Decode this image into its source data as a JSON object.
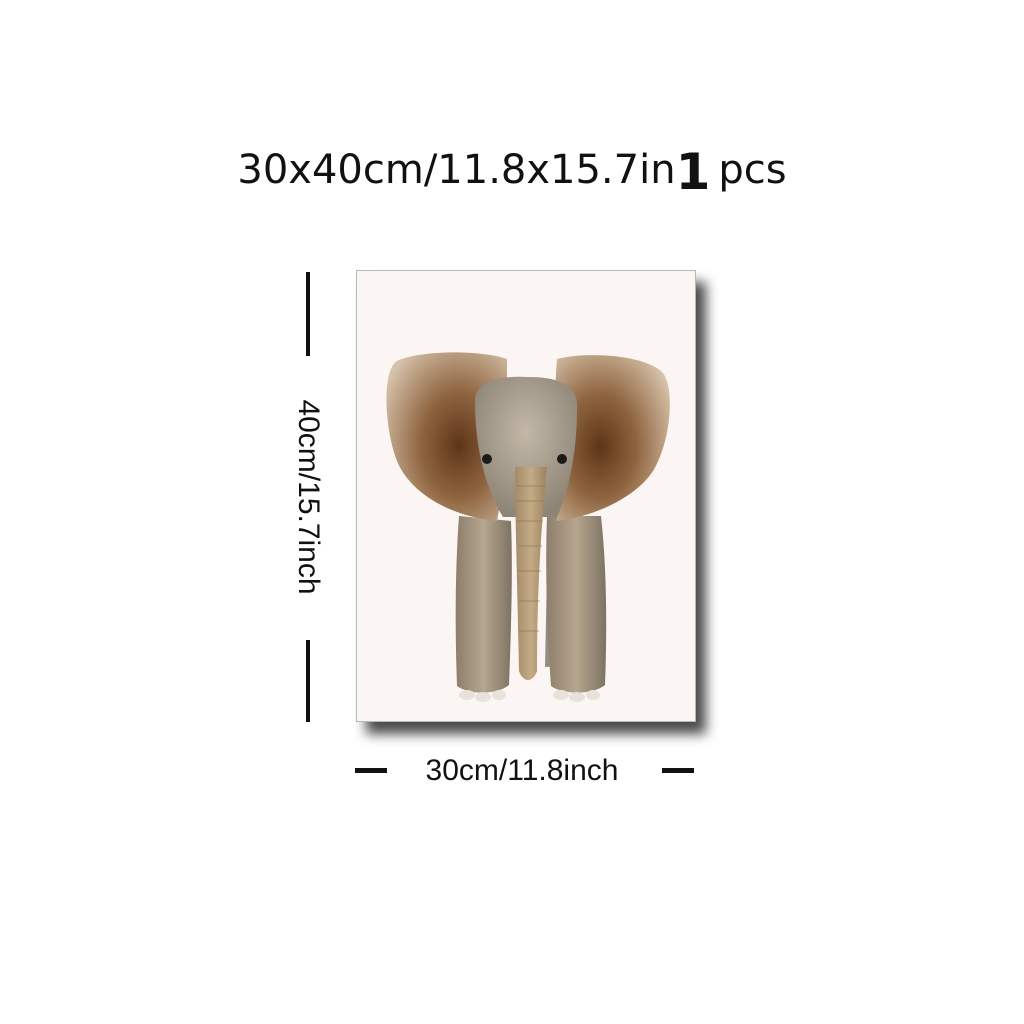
{
  "header": {
    "size_text": "30x40cm/11.8x15.7in",
    "quantity_number": "1",
    "quantity_unit": "pcs"
  },
  "dimensions": {
    "height_label": "40cm/15.7inch",
    "width_label": "30cm/11.8inch"
  },
  "artwork": {
    "subject": "baby-elephant-watercolor",
    "colors": {
      "background": "#fbf6f3",
      "ear_dark": "#6e4326",
      "ear_light": "#c7ad91",
      "body": "#a99a86",
      "head": "#b7ab9b"
    }
  }
}
